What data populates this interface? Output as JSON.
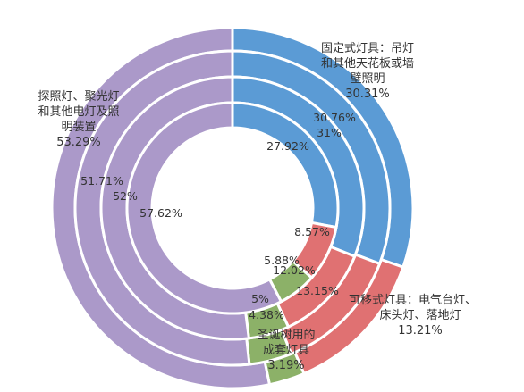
{
  "chart_data": {
    "type": "pie",
    "subtype": "multi-ring-donut",
    "title": "",
    "categories": [
      "固定式灯具：吊灯和其他天花板或墙壁照明",
      "可移式灯具：电气台灯、床头灯、落地灯",
      "圣诞树用的成套灯具",
      "探照灯、聚光灯和其他电灯及照明装置"
    ],
    "category_label_lines": [
      [
        "固定式灯具：吊灯",
        "和其他天花板或墙",
        "壁照明"
      ],
      [
        "可移式灯具：电气台灯、",
        "床头灯、落地灯"
      ],
      [
        "圣诞树用的",
        "成套灯具"
      ],
      [
        "探照灯、聚光灯",
        "和其他电灯及照",
        "明装置"
      ]
    ],
    "colors": [
      "#5b9bd5",
      "#e07172",
      "#8cb168",
      "#ab99c9"
    ],
    "series": [
      {
        "values": [
          30.31,
          13.21,
          3.19,
          53.29
        ],
        "labels": [
          "30.31%",
          "13.21%",
          "3.19%",
          "53.29%"
        ]
      },
      {
        "values": [
          30.76,
          13.15,
          4.38,
          51.71
        ],
        "labels": [
          "30.76%",
          "13.15%",
          "4.38%",
          "51.71%"
        ]
      },
      {
        "values": [
          31,
          12.02,
          5,
          52
        ],
        "labels": [
          "31%",
          "12.02%",
          "5%",
          "52%"
        ]
      },
      {
        "values": [
          27.92,
          8.57,
          5.88,
          57.62
        ],
        "labels": [
          "27.92%",
          "8.57%",
          "5.88%",
          "57.62%"
        ]
      }
    ],
    "legend": "none"
  }
}
